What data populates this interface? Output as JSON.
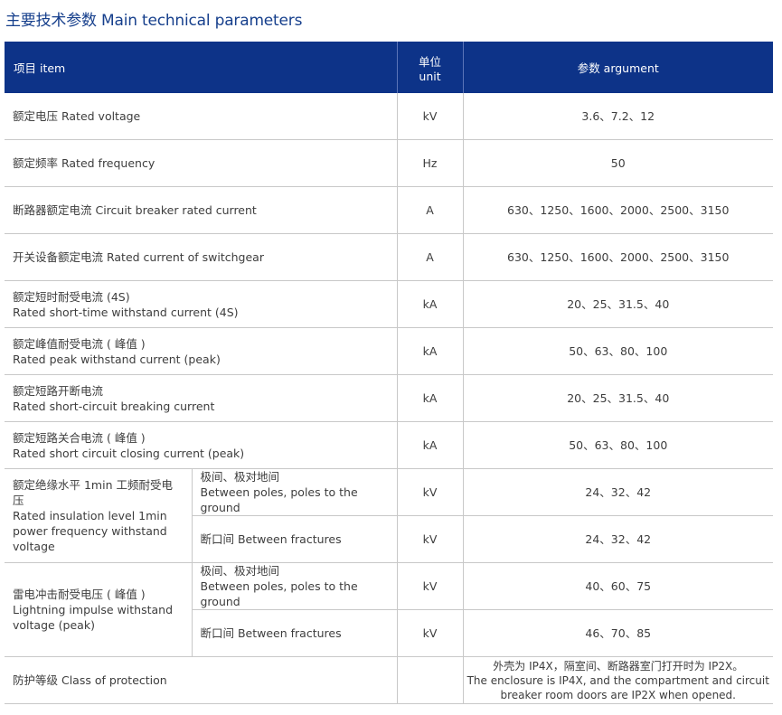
{
  "title": "主要技术参数  Main technical parameters",
  "header": {
    "item": "项目  item",
    "unit": "单位  unit",
    "argument": "参数 argument"
  },
  "rows": [
    {
      "item": "额定电压 Rated voltage",
      "unit": "kV",
      "argument": "3.6、7.2、12"
    },
    {
      "item": "额定频率  Rated frequency",
      "unit": "Hz",
      "argument": "50"
    },
    {
      "item": "断路器额定电流  Circuit breaker rated current",
      "unit": "A",
      "argument": "630、1250、1600、2000、2500、3150"
    },
    {
      "item": "开关设备额定电流  Rated current of switchgear",
      "unit": "A",
      "argument": "630、1250、1600、2000、2500、3150"
    },
    {
      "item_cn": "额定短时耐受电流 (4S)",
      "item_en": "Rated short-time withstand current (4S)",
      "unit": "kA",
      "argument": "20、25、31.5、40"
    },
    {
      "item_cn": "额定峰值耐受电流 ( 峰值 )",
      "item_en": "Rated peak withstand current (peak)",
      "unit": "kA",
      "argument": "50、63、80、100"
    },
    {
      "item_cn": "额定短路开断电流",
      "item_en": "Rated short-circuit breaking current",
      "unit": "kA",
      "argument": "20、25、31.5、40"
    },
    {
      "item_cn": "额定短路关合电流 ( 峰值 )",
      "item_en": "Rated short circuit closing current (peak)",
      "unit": "kA",
      "argument": "50、63、80、100"
    }
  ],
  "insulation": {
    "item_cn": "额定绝缘水平 1min 工频耐受电压",
    "item_en": "Rated insulation level 1min power frequency withstand voltage",
    "sub": [
      {
        "label_cn": "极间、极对地间",
        "label_en": "Between poles, poles to the ground",
        "unit": "kV",
        "argument": "24、32、42"
      },
      {
        "label": "断口间 Between fractures",
        "unit": "kV",
        "argument": "24、32、42"
      }
    ]
  },
  "lightning": {
    "item_cn": "雷电冲击耐受电压 ( 峰值 )",
    "item_en": "Lightning impulse withstand voltage (peak)",
    "sub": [
      {
        "label_cn": "极间、极对地间",
        "label_en": "Between poles, poles to the ground",
        "unit": "kV",
        "argument": "40、60、75"
      },
      {
        "label": "断口间 Between fractures",
        "unit": "kV",
        "argument": "46、70、85"
      }
    ]
  },
  "protection": {
    "item": "防护等级 Class of protection",
    "argument_cn": "外壳为 IP4X，隔室间、断路器室门打开时为 IP2X。",
    "argument_en": "The enclosure is IP4X, and the compartment and circuit breaker room doors are IP2X when opened."
  }
}
